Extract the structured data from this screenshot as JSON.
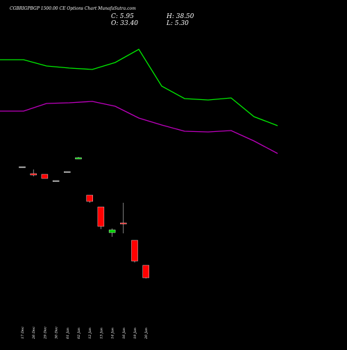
{
  "chart_data": {
    "type": "candlestick",
    "title": "CGBRIGPBGP 1500.00  CE Options  Chart MunafaSutra.com",
    "ohlc": {
      "close": "C: 5.95",
      "high": "H: 38.50",
      "open": "O: 33.40",
      "low": "L: 5.30"
    },
    "categories": [
      "17 Dec",
      "26 Dec",
      "29 Dec",
      "30 Dec",
      "01 Jan",
      "02 Jan",
      "12 Jan",
      "13 Jan",
      "14 Jan",
      "16 Jan",
      "19 Jan",
      "20 Jan"
    ],
    "candles": [
      {
        "date": "17 Dec",
        "open": 8.0,
        "high": 8.0,
        "low": 8.0,
        "close": 8.0,
        "color": "#888888"
      },
      {
        "date": "26 Dec",
        "open": 7.0,
        "high": 7.6,
        "low": 6.6,
        "close": 6.8,
        "color": "#ff0000"
      },
      {
        "date": "29 Dec",
        "open": 6.9,
        "high": 6.9,
        "low": 6.3,
        "close": 6.3,
        "color": "#ff0000"
      },
      {
        "date": "30 Dec",
        "open": 6.0,
        "high": 6.0,
        "low": 6.0,
        "close": 6.0,
        "color": "#888888"
      },
      {
        "date": "01 Jan",
        "open": 7.3,
        "high": 7.3,
        "low": 7.3,
        "close": 7.3,
        "color": "#888888"
      },
      {
        "date": "02 Jan",
        "open": 9.1,
        "high": 9.4,
        "low": 9.1,
        "close": 9.3,
        "color": "#00cc00"
      },
      {
        "date": "12 Jan",
        "open": 3.9,
        "high": 3.9,
        "low": 2.8,
        "close": 3.0,
        "color": "#ff0000"
      },
      {
        "date": "13 Jan",
        "open": 2.2,
        "high": 2.2,
        "low": -1.0,
        "close": -0.6,
        "color": "#ff0000"
      },
      {
        "date": "14 Jan",
        "open": -1.5,
        "high": -0.9,
        "low": -2.1,
        "close": -1.1,
        "color": "#00cc00"
      },
      {
        "date": "16 Jan",
        "open": -0.1,
        "high": 2.8,
        "low": -1.6,
        "close": -0.2,
        "color": "#ff0000"
      },
      {
        "date": "19 Jan",
        "open": -2.6,
        "high": -2.6,
        "low": -5.8,
        "close": -5.6,
        "color": "#ff0000"
      },
      {
        "date": "20 Jan",
        "open": -6.2,
        "high": -6.2,
        "low": -8.1,
        "close": -8.0,
        "color": "#ff0000"
      }
    ],
    "overlay_lines": [
      {
        "color": "#00ee00",
        "x": [
          0,
          34,
          67,
          100,
          133,
          166,
          200,
          233,
          266,
          300,
          333,
          366,
          400
        ],
        "values": [
          23.4,
          23.4,
          22.5,
          22.2,
          22.0,
          23.0,
          24.9,
          19.6,
          17.8,
          17.6,
          17.9,
          15.2,
          13.9
        ]
      },
      {
        "color": "#c000c0",
        "x": [
          0,
          34,
          67,
          100,
          133,
          166,
          200,
          233,
          266,
          300,
          333,
          366,
          400
        ],
        "values": [
          16.0,
          16.0,
          17.1,
          17.2,
          17.4,
          16.7,
          15.0,
          14.0,
          13.1,
          13.0,
          13.2,
          11.7,
          9.9
        ]
      }
    ],
    "ylim": [
      -10,
      30
    ],
    "xlim": [
      0,
      400
    ],
    "grid": false
  }
}
